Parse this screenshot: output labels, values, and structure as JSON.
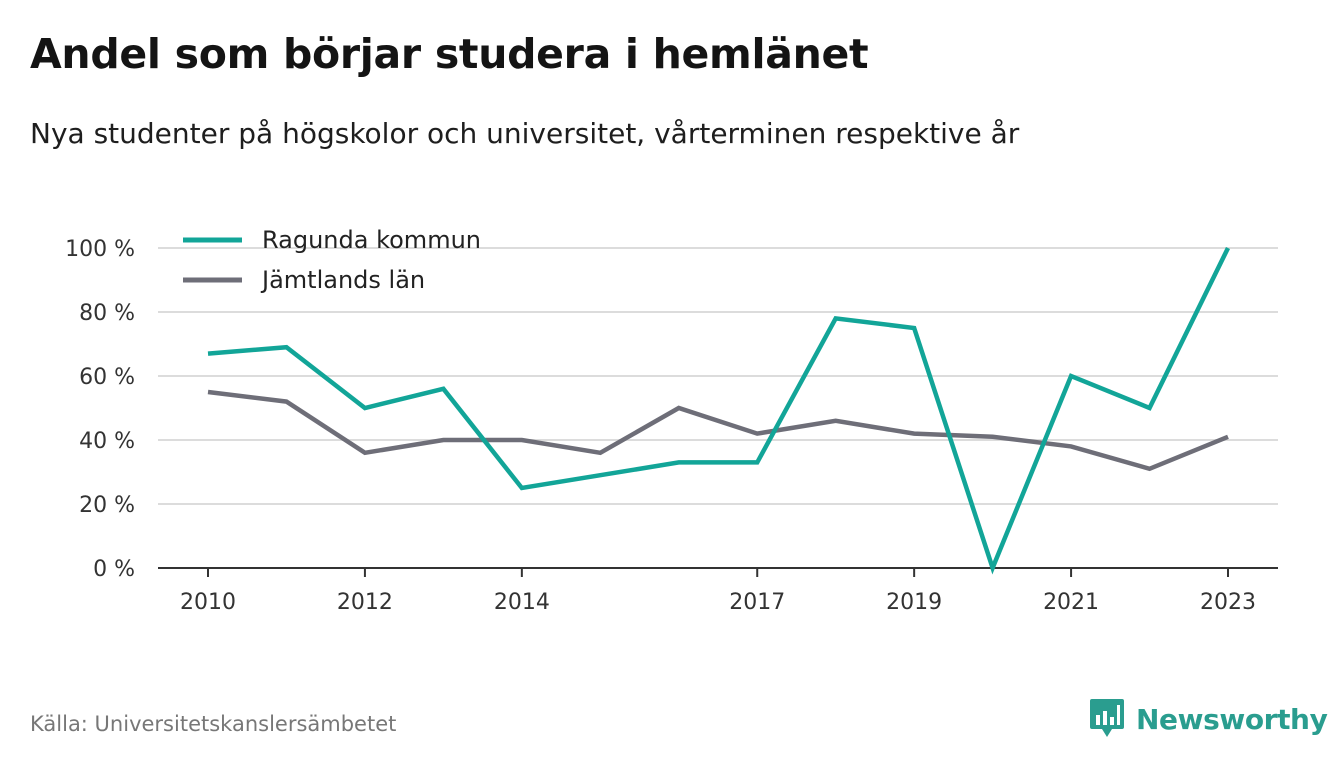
{
  "title": "Andel som börjar studera i hemlänet",
  "subtitle": "Nya studenter på högskolor och universitet, vårterminen respektive år",
  "source": "Källa: Universitetskanslersämbetet",
  "brand": {
    "name": "Newsworthy",
    "icon": "newsworthy-chart-bubble-icon",
    "color": "#2a9d8f"
  },
  "chart_data": {
    "type": "line",
    "x": [
      2010,
      2011,
      2012,
      2013,
      2014,
      2015,
      2016,
      2017,
      2018,
      2019,
      2020,
      2021,
      2022,
      2023
    ],
    "x_tick_labels": [
      "2010",
      "2012",
      "2014",
      "2017",
      "2019",
      "2021",
      "2023"
    ],
    "y_tick_labels": [
      "0 %",
      "20 %",
      "40 %",
      "60 %",
      "80 %",
      "100 %"
    ],
    "ylim": [
      0,
      100
    ],
    "grid": true,
    "legend_position": "top-left",
    "series": [
      {
        "name": "Ragunda kommun",
        "color": "#12a598",
        "values": [
          67,
          69,
          50,
          56,
          25,
          29,
          33,
          33,
          78,
          75,
          0,
          60,
          50,
          100
        ]
      },
      {
        "name": "Jämtlands län",
        "color": "#6e6e78",
        "values": [
          55,
          52,
          36,
          40,
          40,
          36,
          50,
          42,
          46,
          42,
          41,
          38,
          31,
          41
        ]
      }
    ]
  }
}
